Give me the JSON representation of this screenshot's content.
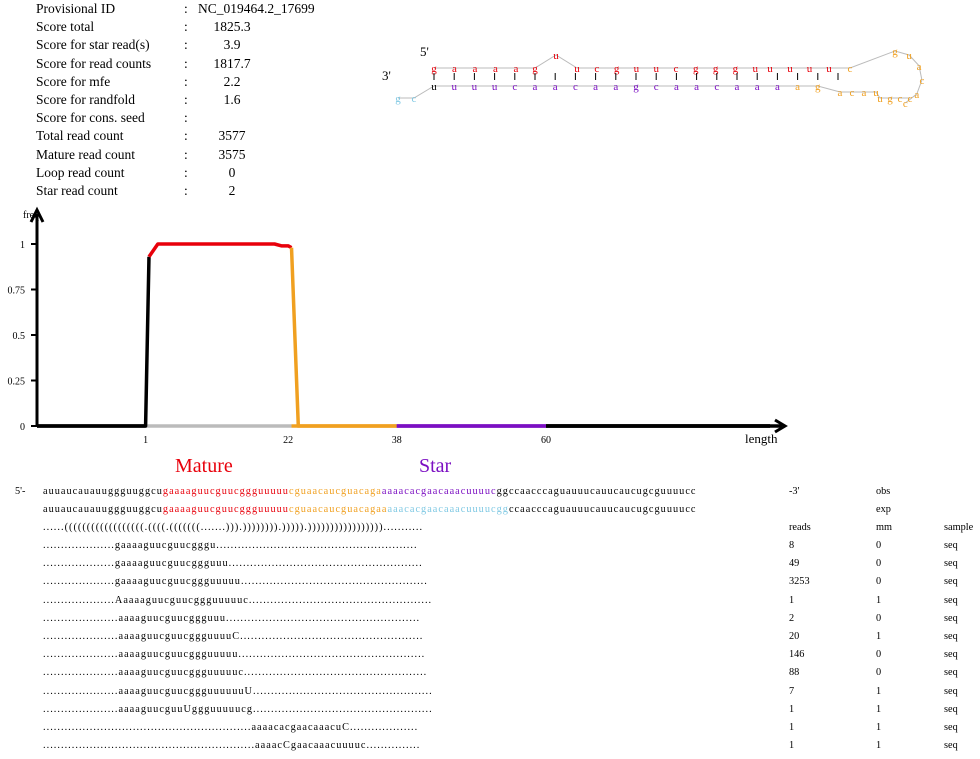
{
  "stats": [
    {
      "label": "Provisional ID",
      "sep": ": ",
      "value": "NC_019464.2_17699"
    },
    {
      "label": "Score total",
      "sep": ":",
      "value": "1825.3"
    },
    {
      "label": "Score for star read(s)",
      "sep": ":",
      "value": "3.9"
    },
    {
      "label": "Score for read counts",
      "sep": ":",
      "value": "1817.7"
    },
    {
      "label": "Score for mfe",
      "sep": ":",
      "value": "2.2"
    },
    {
      "label": "Score for randfold",
      "sep": ":",
      "value": "1.6"
    },
    {
      "label": "Score for cons. seed",
      "sep": ":",
      "value": ""
    },
    {
      "label": "Total read count",
      "sep": ":",
      "value": "3577"
    },
    {
      "label": "Mature read count",
      "sep": ":",
      "value": "3575"
    },
    {
      "label": "Loop read count",
      "sep": ":",
      "value": "0"
    },
    {
      "label": "Star read count",
      "sep": ":",
      "value": "2"
    }
  ],
  "colors": {
    "mature": "#e8000b",
    "loop": "#f0a020",
    "star": "#7b0fc2",
    "flank5": "#000000",
    "flank3": "#7ec8e3",
    "plot_grey": "#bbbbbb"
  },
  "hairpin": {
    "end5": "5'",
    "end3": "3'",
    "top_strand": "gaaaaguucguucggguuuuucguacac",
    "bottom_strand": "gcuuuucaacaagcaacaaaagacauugcc"
  },
  "chart_data": {
    "type": "line",
    "ylabel": "freq.",
    "xlabel": "length",
    "y_ticks": [
      "0",
      "0.25",
      "0.5",
      "0.75",
      "1"
    ],
    "x_ticks": [
      {
        "label": "1",
        "x": 1
      },
      {
        "label": "22",
        "x": 22
      },
      {
        "label": "38",
        "x": 38
      },
      {
        "label": "60",
        "x": 60
      }
    ],
    "ylim": [
      0,
      1
    ],
    "xlim": [
      -15,
      93
    ],
    "series": [
      {
        "region": "flank5",
        "values": [
          [
            -15,
            0
          ],
          [
            1,
            0
          ],
          [
            1.5,
            0.93
          ]
        ]
      },
      {
        "region": "mature",
        "values": [
          [
            1.5,
            0.93
          ],
          [
            2.8,
            1.0
          ],
          [
            20,
            1.0
          ],
          [
            21,
            0.99
          ],
          [
            22,
            0.99
          ],
          [
            22.5,
            0.98
          ]
        ]
      },
      {
        "region": "loop",
        "values": [
          [
            22.5,
            0.98
          ],
          [
            23.5,
            0.0
          ],
          [
            38,
            0.0
          ]
        ]
      },
      {
        "region": "star",
        "values": [
          [
            38,
            0.0
          ],
          [
            60,
            0.0
          ]
        ]
      },
      {
        "region": "flank3",
        "values": [
          [
            60,
            0.0
          ],
          [
            93,
            0.0
          ]
        ]
      }
    ]
  },
  "labels": {
    "mature": "Mature",
    "star": "Star"
  },
  "alignment": {
    "seq_segments": [
      {
        "text": "auuaucauauuggguuggcu",
        "color": "flank5"
      },
      {
        "text": "gaaaaguucguucggguuuuu",
        "color": "mature"
      },
      {
        "text": "cguaacaucguacaga",
        "color": "loop"
      },
      {
        "text": "aaaacacgaacaaacuuuuc",
        "color": "star"
      },
      {
        "text": "ggccaacccaguauuucauucaucugcguuuucc",
        "color": "flank5"
      }
    ],
    "exp_segments": [
      {
        "text": "auuaucauauuggguuggcu",
        "color": "flank5"
      },
      {
        "text": "gaaaaguucguucggguuuuu",
        "color": "mature"
      },
      {
        "text": "cguaacaucguacagaa",
        "color": "loop"
      },
      {
        "text": "aaacacgaacaaacuuuucgg",
        "color": "flank3"
      },
      {
        "text": "ccaacccaguauuucauucaucugcguuuucc",
        "color": "flank5"
      }
    ],
    "prefix5": "5'-",
    "suffix3": "-3'",
    "obs_label": "obs",
    "exp_label": "exp",
    "structure": "......((((((((((((((((((.((((.(((((((.......))).)))))))).))))).)))))))))))))))))...........",
    "headers": {
      "reads": "reads",
      "mm": "mm",
      "sample": "sample"
    },
    "reads": [
      {
        "seq": "....................gaaaaguucguucgggu........................................................",
        "reads": "8",
        "mm": "0",
        "sample": "seq"
      },
      {
        "seq": "....................gaaaaguucguucggguuu......................................................",
        "reads": "49",
        "mm": "0",
        "sample": "seq"
      },
      {
        "seq": "....................gaaaaguucguucggguuuuu....................................................",
        "reads": "3253",
        "mm": "0",
        "sample": "seq"
      },
      {
        "seq": "....................Aaaaaguucguucggguuuuuc...................................................",
        "reads": "1",
        "mm": "1",
        "sample": "seq"
      },
      {
        "seq": ".....................aaaaguucguucggguuu......................................................",
        "reads": "2",
        "mm": "0",
        "sample": "seq"
      },
      {
        "seq": ".....................aaaaguucguucggguuuuC...................................................",
        "reads": "20",
        "mm": "1",
        "sample": "seq"
      },
      {
        "seq": ".....................aaaaguucguucggguuuuu....................................................",
        "reads": "146",
        "mm": "0",
        "sample": "seq"
      },
      {
        "seq": ".....................aaaaguucguucggguuuuuc...................................................",
        "reads": "88",
        "mm": "0",
        "sample": "seq"
      },
      {
        "seq": ".....................aaaaguucguucggguuuuuuU..................................................",
        "reads": "7",
        "mm": "1",
        "sample": "seq"
      },
      {
        "seq": ".....................aaaaguucguuUggguuuuucg..................................................",
        "reads": "1",
        "mm": "1",
        "sample": "seq"
      },
      {
        "seq": "..........................................................aaaacacgaacaaacuC...................",
        "reads": "1",
        "mm": "1",
        "sample": "seq"
      },
      {
        "seq": "...........................................................aaaacCgaacaaacuuuuc...............",
        "reads": "1",
        "mm": "1",
        "sample": "seq"
      }
    ]
  }
}
